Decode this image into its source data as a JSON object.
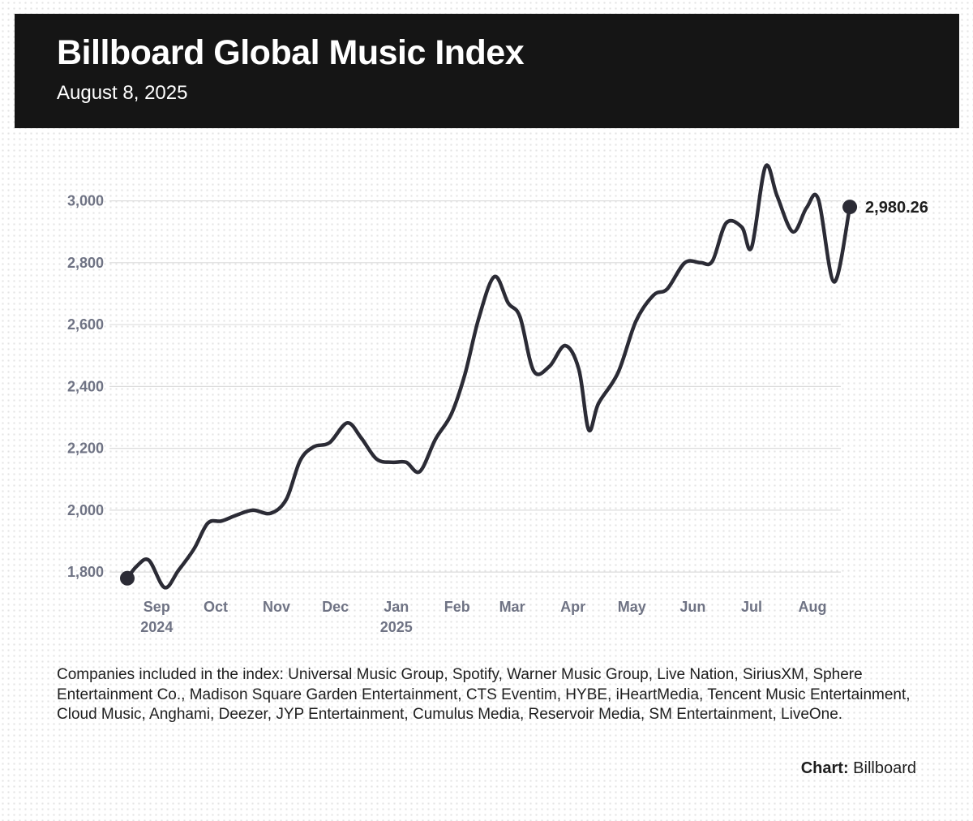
{
  "header": {
    "title": "Billboard Global Music Index",
    "date": "August 8, 2025"
  },
  "footer": {
    "note": "Companies included in the index: Universal Music Group, Spotify, Warner Music Group, Live Nation, SiriusXM, Sphere Entertainment Co., Madison Square Garden Entertainment, CTS Eventim, HYBE, iHeartMedia, Tencent Music Entertainment, Cloud Music, Anghami, Deezer, JYP Entertainment, Cumulus Media, Reservoir Media, SM Entertainment, LiveOne.",
    "credit_label": "Chart:",
    "credit_source": "Billboard"
  },
  "colors": {
    "line": "#2b2b35",
    "header_bg": "#151515",
    "tick_label": "#6f7384",
    "gridline": "#dcdcdc"
  },
  "chart_data": {
    "type": "line",
    "ylim": [
      1740,
      3130
    ],
    "y_ticks": [
      1800,
      2000,
      2200,
      2400,
      2600,
      2800,
      3000
    ],
    "y_tick_labels": [
      "1,800",
      "2,000",
      "2,200",
      "2,400",
      "2,600",
      "2,800",
      "3,000"
    ],
    "x_ticks": [
      {
        "label": "Sep",
        "sub": "2024",
        "date": "2024-09-01"
      },
      {
        "label": "Oct",
        "sub": "",
        "date": "2024-10-01"
      },
      {
        "label": "Nov",
        "sub": "",
        "date": "2024-11-01"
      },
      {
        "label": "Dec",
        "sub": "",
        "date": "2024-12-01"
      },
      {
        "label": "Jan",
        "sub": "2025",
        "date": "2025-01-01"
      },
      {
        "label": "Feb",
        "sub": "",
        "date": "2025-02-01"
      },
      {
        "label": "Mar",
        "sub": "",
        "date": "2025-03-01"
      },
      {
        "label": "Apr",
        "sub": "",
        "date": "2025-04-01"
      },
      {
        "label": "May",
        "sub": "",
        "date": "2025-05-01"
      },
      {
        "label": "Jun",
        "sub": "",
        "date": "2025-06-01"
      },
      {
        "label": "Jul",
        "sub": "",
        "date": "2025-07-01"
      },
      {
        "label": "Aug",
        "sub": "",
        "date": "2025-08-01"
      }
    ],
    "x_range": [
      "2024-08-17",
      "2025-08-08"
    ],
    "end_label": "2,980.26",
    "series": [
      {
        "points": [
          [
            "2024-08-17",
            1780
          ],
          [
            "2024-08-22",
            1820
          ],
          [
            "2024-08-28",
            1838
          ],
          [
            "2024-09-05",
            1750
          ],
          [
            "2024-09-12",
            1805
          ],
          [
            "2024-09-20",
            1875
          ],
          [
            "2024-09-27",
            1958
          ],
          [
            "2024-10-04",
            1965
          ],
          [
            "2024-10-12",
            1985
          ],
          [
            "2024-10-20",
            2000
          ],
          [
            "2024-10-29",
            1990
          ],
          [
            "2024-11-06",
            2035
          ],
          [
            "2024-11-13",
            2160
          ],
          [
            "2024-11-20",
            2205
          ],
          [
            "2024-11-28",
            2218
          ],
          [
            "2024-12-07",
            2282
          ],
          [
            "2024-12-14",
            2235
          ],
          [
            "2024-12-22",
            2165
          ],
          [
            "2024-12-30",
            2155
          ],
          [
            "2025-01-06",
            2155
          ],
          [
            "2025-01-13",
            2125
          ],
          [
            "2025-01-21",
            2230
          ],
          [
            "2025-01-29",
            2310
          ],
          [
            "2025-02-05",
            2440
          ],
          [
            "2025-02-12",
            2620
          ],
          [
            "2025-02-20",
            2755
          ],
          [
            "2025-02-27",
            2670
          ],
          [
            "2025-03-05",
            2625
          ],
          [
            "2025-03-12",
            2450
          ],
          [
            "2025-03-20",
            2465
          ],
          [
            "2025-03-28",
            2532
          ],
          [
            "2025-04-04",
            2455
          ],
          [
            "2025-04-09",
            2260
          ],
          [
            "2025-04-14",
            2345
          ],
          [
            "2025-04-24",
            2445
          ],
          [
            "2025-05-03",
            2610
          ],
          [
            "2025-05-12",
            2695
          ],
          [
            "2025-05-19",
            2715
          ],
          [
            "2025-05-28",
            2800
          ],
          [
            "2025-06-05",
            2800
          ],
          [
            "2025-06-11",
            2805
          ],
          [
            "2025-06-18",
            2928
          ],
          [
            "2025-06-26",
            2915
          ],
          [
            "2025-07-01",
            2850
          ],
          [
            "2025-07-08",
            3110
          ],
          [
            "2025-07-14",
            3015
          ],
          [
            "2025-07-22",
            2900
          ],
          [
            "2025-07-29",
            2978
          ],
          [
            "2025-08-04",
            3005
          ],
          [
            "2025-08-12",
            2738
          ],
          [
            "2025-08-20",
            2980.26
          ]
        ]
      }
    ]
  }
}
